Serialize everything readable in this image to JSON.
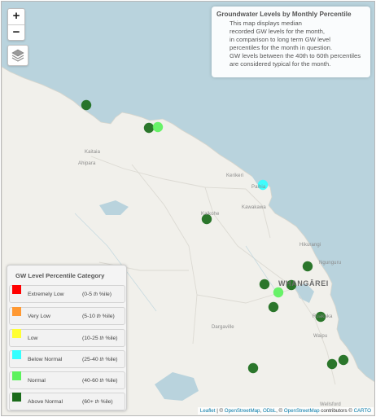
{
  "map": {
    "zoom_in": "+",
    "zoom_out": "−",
    "places": [
      "Kaitaia",
      "Ahipara",
      "Kerikeri",
      "Paihia",
      "Kawakawa",
      "Kaikohe",
      "Hikurangi",
      "Ngunguru",
      "Dargaville",
      "Ruakaka",
      "Waipu",
      "Wellsford"
    ],
    "city": "WHANGĀREI"
  },
  "colors": {
    "water": "#b9d3dd",
    "land": "#f1f0eb",
    "extremely_low": "#ff0000",
    "very_low": "#ff9933",
    "low": "#ffff33",
    "below_normal": "#33ffff",
    "normal": "#5cf25c",
    "above_normal": "#1a6b1a"
  },
  "info": {
    "title": "Groundwater Levels by Monthly Percentile",
    "lines": [
      "This map displays median",
      "recorded GW levels for the month,",
      "in comparison to long term GW level",
      "percentiles for the month in question.",
      "GW levels between the 40th to 60th percentiles",
      "are considered typical for the month."
    ]
  },
  "legend": {
    "title": "GW Level Percentile Category",
    "items": [
      {
        "label": "Extremely Low",
        "range_pre": "(0-5",
        "range_post": "%ile)",
        "color": "#ff0000"
      },
      {
        "label": "Very Low",
        "range_pre": "(5-10",
        "range_post": "%ile)",
        "color": "#ff9933"
      },
      {
        "label": "Low",
        "range_pre": "(10-25",
        "range_post": "%ile)",
        "color": "#ffff33"
      },
      {
        "label": "Below Normal",
        "range_pre": "(25-40",
        "range_post": "%ile)",
        "color": "#33ffff"
      },
      {
        "label": "Normal",
        "range_pre": "(40-60",
        "range_post": "%ile)",
        "color": "#5cf25c"
      },
      {
        "label": "Above Normal",
        "range_pre": "(60+",
        "range_post": "%ile)",
        "color": "#1a6b1a"
      }
    ],
    "th": "th"
  },
  "sites": [
    {
      "category": "Above Normal"
    },
    {
      "category": "Above Normal"
    },
    {
      "category": "Normal"
    },
    {
      "category": "Below Normal"
    },
    {
      "category": "Above Normal"
    },
    {
      "category": "Above Normal"
    },
    {
      "category": "Above Normal"
    },
    {
      "category": "Normal"
    },
    {
      "category": "Above Normal"
    },
    {
      "category": "Above Normal"
    },
    {
      "category": "Above Normal"
    },
    {
      "category": "Above Normal"
    },
    {
      "category": "Above Normal"
    },
    {
      "category": "Above Normal"
    }
  ],
  "attribution": {
    "leaflet": "Leaflet",
    "sep1": " | © ",
    "osm": "OpenStreetMap",
    "sep2": ", ",
    "odbl": "ODbL",
    "sep3": ", © ",
    "osm2": "OpenStreetMap",
    "contributors": " contributors © ",
    "carto": "CARTO"
  }
}
